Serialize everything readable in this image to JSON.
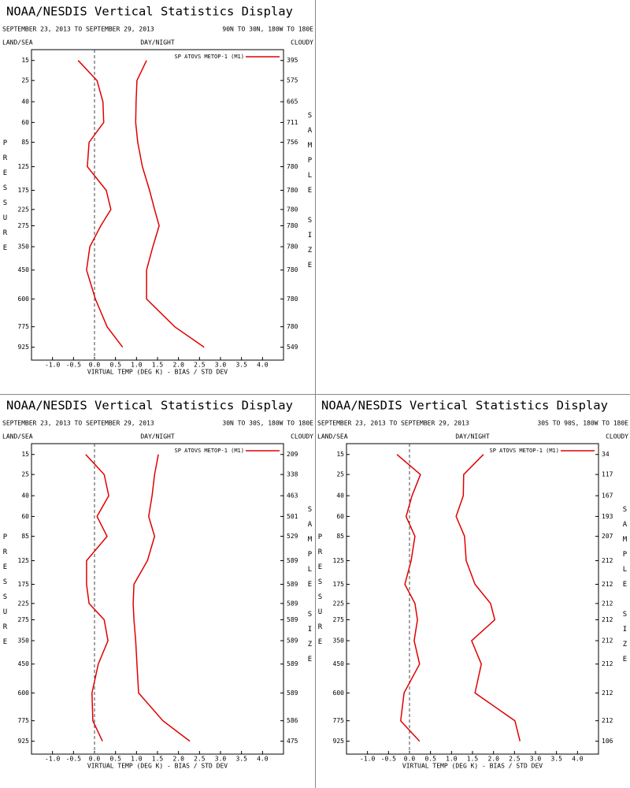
{
  "chart_data": [
    {
      "type": "line",
      "title": "NOAA/NESDIS Vertical Statistics Display",
      "subtitle": "SEPTEMBER 23, 2013 TO SEPTEMBER 29, 2013",
      "region": "90N TO 30N, 180W TO 180E",
      "land_sea": "LAND/SEA",
      "day_night": "DAY/NIGHT",
      "cloudy": "CLOUDY",
      "x_label": "VIRTUAL TEMP (DEG K) - BIAS / STD DEV",
      "y_label": "PRESSURE",
      "y2_label": "SAMPLE SIZE",
      "xlim": [
        -1.5,
        4.5
      ],
      "xticks": [
        {
          "value": -1,
          "label": "-1.0"
        },
        {
          "value": -0.5,
          "label": "-0.5"
        },
        {
          "value": 0,
          "label": "0.0"
        },
        {
          "value": 0.5,
          "label": "0.5"
        },
        {
          "value": 1,
          "label": "1.0"
        },
        {
          "value": 1.5,
          "label": "1.5"
        },
        {
          "value": 2,
          "label": "2.0"
        },
        {
          "value": 2.5,
          "label": "2.5"
        },
        {
          "value": 3,
          "label": "3.0"
        },
        {
          "value": 3.5,
          "label": "3.5"
        },
        {
          "value": 4,
          "label": "4.0"
        }
      ],
      "ylim": [
        11,
        1030
      ],
      "y": [
        15,
        25,
        40,
        60,
        85,
        125,
        175,
        225,
        275,
        350,
        450,
        600,
        775,
        925
      ],
      "yticks": [
        15,
        25,
        40,
        60,
        85,
        125,
        175,
        225,
        275,
        350,
        450,
        600,
        775,
        925
      ],
      "sample_size": [
        395,
        575,
        665,
        711,
        756,
        780,
        780,
        780,
        780,
        780,
        780,
        780,
        780,
        549
      ],
      "series": [
        {
          "name": "SP ATOVS METOP-1 (M1)",
          "color": "#e00000",
          "bias": [
            -0.39,
            0.06,
            0.2,
            0.22,
            -0.13,
            -0.17,
            0.28,
            0.39,
            0.15,
            -0.11,
            -0.19,
            0.02,
            0.3,
            0.67
          ],
          "std_dev": [
            1.24,
            1.01,
            0.99,
            0.98,
            1.03,
            1.14,
            1.31,
            1.43,
            1.54,
            1.39,
            1.24,
            1.24,
            1.91,
            2.61
          ]
        }
      ]
    },
    {
      "type": "line",
      "title": "NOAA/NESDIS Vertical Statistics Display",
      "subtitle": "SEPTEMBER 23, 2013 TO SEPTEMBER 29, 2013",
      "region": "30N TO 30S, 180W TO 180E",
      "land_sea": "LAND/SEA",
      "day_night": "DAY/NIGHT",
      "cloudy": "CLOUDY",
      "x_label": "VIRTUAL TEMP (DEG K) - BIAS / STD DEV",
      "y_label": "PRESSURE",
      "y2_label": "SAMPLE SIZE",
      "xlim": [
        -1.5,
        4.5
      ],
      "xticks": [
        {
          "value": -1,
          "label": "-1.0"
        },
        {
          "value": -0.5,
          "label": "-0.5"
        },
        {
          "value": 0,
          "label": "0.0"
        },
        {
          "value": 0.5,
          "label": "0.5"
        },
        {
          "value": 1,
          "label": "1.0"
        },
        {
          "value": 1.5,
          "label": "1.5"
        },
        {
          "value": 2,
          "label": "2.0"
        },
        {
          "value": 2.5,
          "label": "2.5"
        },
        {
          "value": 3,
          "label": "3.0"
        },
        {
          "value": 3.5,
          "label": "3.5"
        },
        {
          "value": 4,
          "label": "4.0"
        }
      ],
      "ylim": [
        11,
        1030
      ],
      "y": [
        15,
        25,
        40,
        60,
        85,
        125,
        175,
        225,
        275,
        350,
        450,
        600,
        775,
        925
      ],
      "yticks": [
        15,
        25,
        40,
        60,
        85,
        125,
        175,
        225,
        275,
        350,
        450,
        600,
        775,
        925
      ],
      "sample_size": [
        209,
        338,
        463,
        501,
        529,
        589,
        589,
        589,
        589,
        589,
        589,
        589,
        586,
        475
      ],
      "series": [
        {
          "name": "SP ATOVS METOP-1 (M1)",
          "color": "#e00000",
          "bias": [
            -0.21,
            0.23,
            0.34,
            0.06,
            0.3,
            -0.19,
            -0.19,
            -0.13,
            0.23,
            0.32,
            0.09,
            -0.06,
            -0.04,
            0.19
          ],
          "std_dev": [
            1.52,
            1.43,
            1.37,
            1.29,
            1.43,
            1.26,
            0.94,
            0.92,
            0.94,
            0.98,
            1.01,
            1.05,
            1.63,
            2.27
          ]
        }
      ]
    },
    {
      "type": "line",
      "title": "NOAA/NESDIS Vertical Statistics Display",
      "subtitle": "SEPTEMBER 23, 2013 TO SEPTEMBER 29, 2013",
      "region": "30S TO 90S, 180W TO 180E",
      "land_sea": "LAND/SEA",
      "day_night": "DAY/NIGHT",
      "cloudy": "CLOUDY",
      "x_label": "VIRTUAL TEMP (DEG K) - BIAS / STD DEV",
      "y_label": "PRESSURE",
      "y2_label": "SAMPLE SIZE",
      "xlim": [
        -1.5,
        4.5
      ],
      "xticks": [
        {
          "value": -1,
          "label": "-1.0"
        },
        {
          "value": -0.5,
          "label": "-0.5"
        },
        {
          "value": 0,
          "label": "0.0"
        },
        {
          "value": 0.5,
          "label": "0.5"
        },
        {
          "value": 1,
          "label": "1.0"
        },
        {
          "value": 1.5,
          "label": "1.5"
        },
        {
          "value": 2,
          "label": "2.0"
        },
        {
          "value": 2.5,
          "label": "2.5"
        },
        {
          "value": 3,
          "label": "3.0"
        },
        {
          "value": 3.5,
          "label": "3.5"
        },
        {
          "value": 4,
          "label": "4.0"
        }
      ],
      "ylim": [
        11,
        1030
      ],
      "y": [
        15,
        25,
        40,
        60,
        85,
        125,
        175,
        225,
        275,
        350,
        450,
        600,
        775,
        925
      ],
      "yticks": [
        15,
        25,
        40,
        60,
        85,
        125,
        175,
        225,
        275,
        350,
        450,
        600,
        775,
        925
      ],
      "sample_size": [
        34,
        117,
        167,
        193,
        207,
        212,
        212,
        212,
        212,
        212,
        212,
        212,
        212,
        106
      ],
      "series": [
        {
          "name": "SP ATOVS METOP-1 (M1)",
          "color": "#e00000",
          "bias": [
            -0.3,
            0.26,
            0.06,
            -0.08,
            0.13,
            0.04,
            -0.11,
            0.13,
            0.19,
            0.11,
            0.24,
            -0.13,
            -0.21,
            0.24
          ],
          "std_dev": [
            1.76,
            1.29,
            1.28,
            1.11,
            1.31,
            1.35,
            1.56,
            1.93,
            2.03,
            1.48,
            1.71,
            1.56,
            2.51,
            2.63
          ]
        }
      ]
    }
  ]
}
